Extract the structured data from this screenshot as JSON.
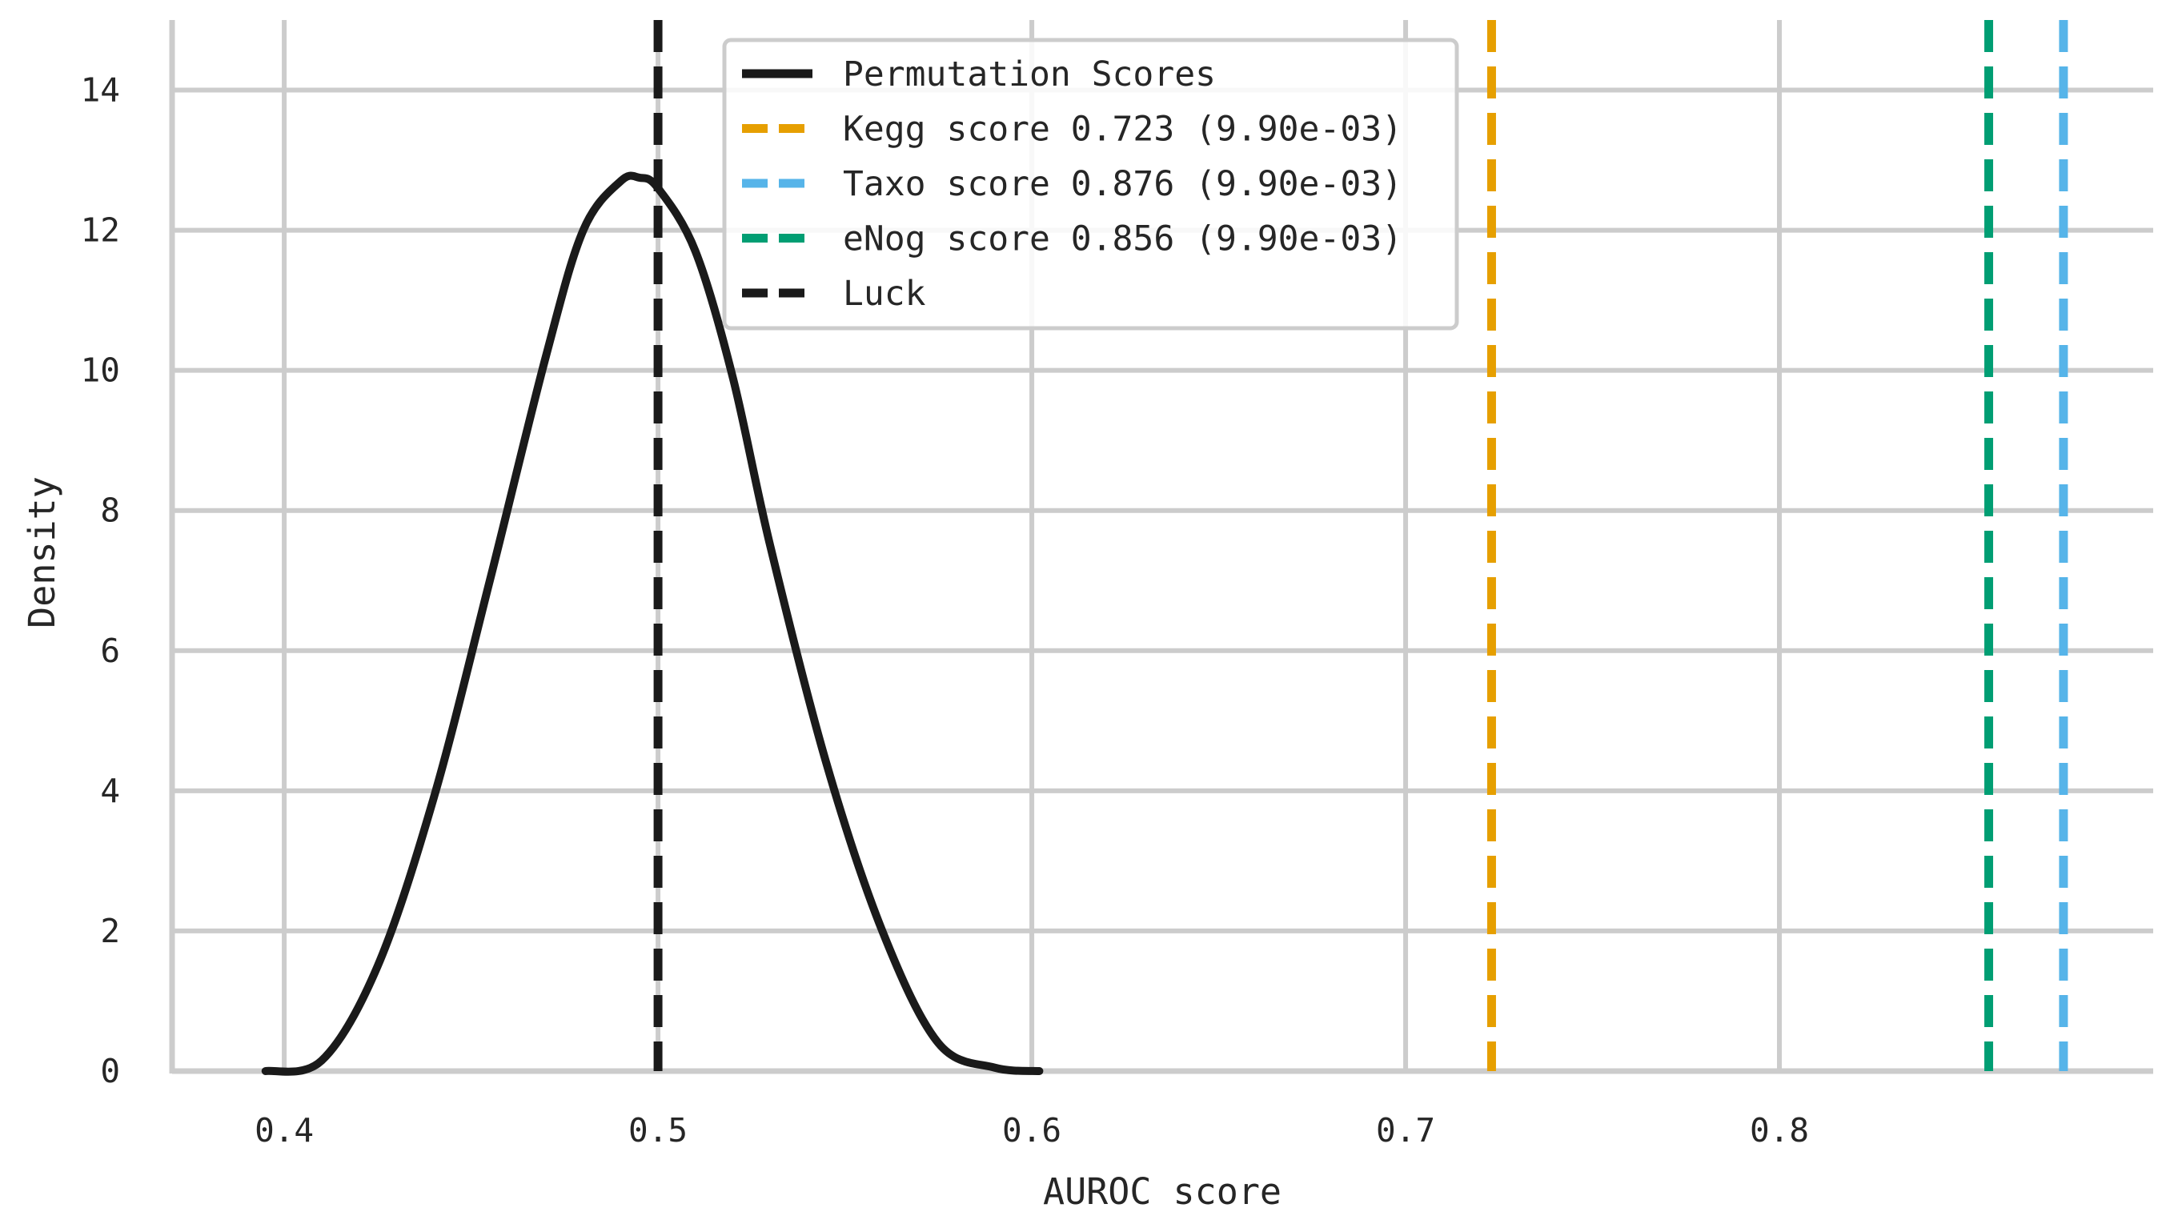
{
  "chart_data": {
    "type": "line",
    "title": "",
    "xlabel": "AUROC score",
    "ylabel": "Density",
    "xlim": [
      0.37,
      0.9
    ],
    "ylim": [
      0,
      15
    ],
    "xticks": [
      0.4,
      0.5,
      0.6,
      0.7,
      0.8
    ],
    "xtick_labels": [
      "0.4",
      "0.5",
      "0.6",
      "0.7",
      "0.8"
    ],
    "yticks": [
      0,
      2,
      4,
      6,
      8,
      10,
      12,
      14
    ],
    "ytick_labels": [
      "0",
      "2",
      "4",
      "6",
      "8",
      "10",
      "12",
      "14"
    ],
    "grid": true,
    "legend_position": "top-center",
    "series": [
      {
        "name": "Permutation Scores",
        "kind": "density-curve",
        "color": "#1a1a1a",
        "x": [
          0.395,
          0.41,
          0.425,
          0.44,
          0.455,
          0.47,
          0.48,
          0.49,
          0.495,
          0.5,
          0.51,
          0.52,
          0.53,
          0.545,
          0.56,
          0.575,
          0.59,
          0.602
        ],
        "y": [
          0.0,
          0.15,
          1.5,
          3.9,
          7.0,
          10.2,
          12.0,
          12.7,
          12.75,
          12.6,
          11.7,
          9.9,
          7.5,
          4.4,
          2.0,
          0.4,
          0.05,
          0.0
        ]
      },
      {
        "name": "Kegg score 0.723 (9.90e-03)",
        "kind": "vline",
        "value": 0.723,
        "color": "#e69f00"
      },
      {
        "name": "Taxo score 0.876 (9.90e-03)",
        "kind": "vline",
        "value": 0.876,
        "color": "#56b4e9"
      },
      {
        "name": "eNog score 0.856 (9.90e-03)",
        "kind": "vline",
        "value": 0.856,
        "color": "#009e73"
      },
      {
        "name": "Luck",
        "kind": "vline",
        "value": 0.5,
        "color": "#1a1a1a"
      }
    ],
    "legend": [
      {
        "label": "Permutation Scores",
        "style": "solid",
        "color": "#1a1a1a"
      },
      {
        "label": "Kegg score 0.723 (9.90e-03)",
        "style": "dashed",
        "color": "#e69f00"
      },
      {
        "label": "Taxo score 0.876 (9.90e-03)",
        "style": "dashed",
        "color": "#56b4e9"
      },
      {
        "label": "eNog score 0.856 (9.90e-03)",
        "style": "dashed",
        "color": "#009e73"
      },
      {
        "label": "Luck",
        "style": "dashed",
        "color": "#1a1a1a"
      }
    ]
  },
  "colors": {
    "grid": "#cccccc",
    "axis": "#cccccc",
    "text": "#262626",
    "legend_border": "#cccccc"
  }
}
